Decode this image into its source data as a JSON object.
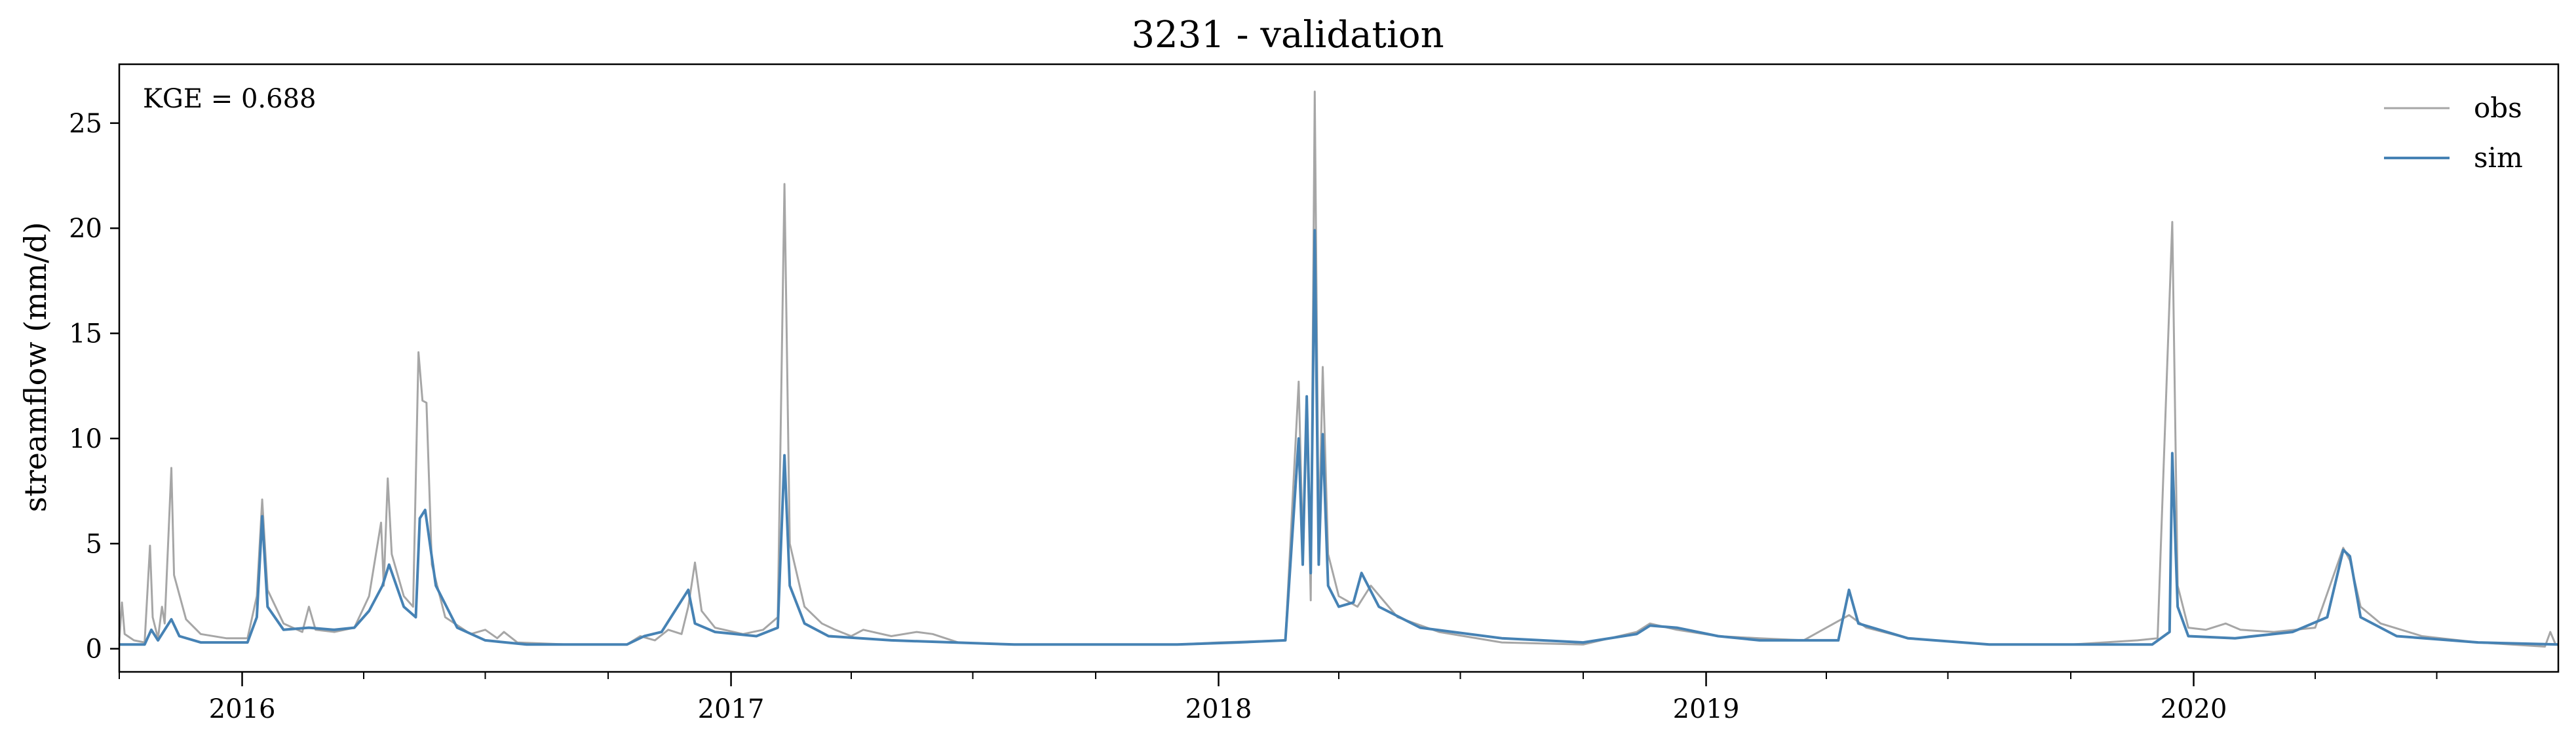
{
  "chart_data": {
    "type": "line",
    "title": "3231 - validation",
    "xlabel": "",
    "ylabel": "streamflow (mm/d)",
    "annotation": "KGE = 0.688",
    "x_range": [
      "2015-10-01",
      "2020-09-30"
    ],
    "x_tick_labels": [
      "2016",
      "2017",
      "2018",
      "2019",
      "2020"
    ],
    "x_ticks": [
      "2016-01-01",
      "2017-01-01",
      "2018-01-01",
      "2019-01-01",
      "2020-01-01"
    ],
    "ylim": [
      -1.1,
      27.8
    ],
    "y_ticks": [
      0,
      5,
      10,
      15,
      20,
      25
    ],
    "y_tick_labels": [
      "0",
      "5",
      "10",
      "15",
      "20",
      "25"
    ],
    "grid": false,
    "legend_position": "top-right",
    "series": [
      {
        "name": "obs",
        "color": "#a6a6a6",
        "points": [
          [
            "2015-10-01",
            0.4
          ],
          [
            "2015-10-03",
            2.2
          ],
          [
            "2015-10-05",
            0.7
          ],
          [
            "2015-10-12",
            0.4
          ],
          [
            "2015-10-20",
            0.3
          ],
          [
            "2015-10-24",
            4.9
          ],
          [
            "2015-10-26",
            1.5
          ],
          [
            "2015-10-30",
            0.5
          ],
          [
            "2015-11-02",
            2.0
          ],
          [
            "2015-11-04",
            1.2
          ],
          [
            "2015-11-09",
            8.6
          ],
          [
            "2015-11-11",
            3.5
          ],
          [
            "2015-11-20",
            1.4
          ],
          [
            "2015-12-01",
            0.7
          ],
          [
            "2015-12-20",
            0.5
          ],
          [
            "2016-01-05",
            0.5
          ],
          [
            "2016-01-12",
            2.5
          ],
          [
            "2016-01-16",
            7.1
          ],
          [
            "2016-01-20",
            2.8
          ],
          [
            "2016-02-01",
            1.2
          ],
          [
            "2016-02-15",
            0.8
          ],
          [
            "2016-02-20",
            2.0
          ],
          [
            "2016-02-25",
            0.9
          ],
          [
            "2016-03-10",
            0.8
          ],
          [
            "2016-03-25",
            1.0
          ],
          [
            "2016-04-05",
            2.5
          ],
          [
            "2016-04-14",
            6.0
          ],
          [
            "2016-04-16",
            3.0
          ],
          [
            "2016-04-19",
            8.1
          ],
          [
            "2016-04-22",
            4.5
          ],
          [
            "2016-05-01",
            2.5
          ],
          [
            "2016-05-08",
            2.0
          ],
          [
            "2016-05-12",
            14.1
          ],
          [
            "2016-05-15",
            11.8
          ],
          [
            "2016-05-18",
            11.7
          ],
          [
            "2016-05-22",
            4.0
          ],
          [
            "2016-06-01",
            1.5
          ],
          [
            "2016-06-20",
            0.7
          ],
          [
            "2016-07-01",
            0.9
          ],
          [
            "2016-07-10",
            0.5
          ],
          [
            "2016-07-15",
            0.8
          ],
          [
            "2016-07-25",
            0.3
          ],
          [
            "2016-09-01",
            0.2
          ],
          [
            "2016-10-15",
            0.2
          ],
          [
            "2016-10-25",
            0.6
          ],
          [
            "2016-11-05",
            0.4
          ],
          [
            "2016-11-15",
            0.9
          ],
          [
            "2016-11-25",
            0.7
          ],
          [
            "2016-11-30",
            2.0
          ],
          [
            "2016-12-05",
            4.1
          ],
          [
            "2016-12-10",
            1.8
          ],
          [
            "2016-12-20",
            1.0
          ],
          [
            "2017-01-10",
            0.7
          ],
          [
            "2017-01-25",
            0.9
          ],
          [
            "2017-02-05",
            1.5
          ],
          [
            "2017-02-10",
            22.1
          ],
          [
            "2017-02-14",
            5.0
          ],
          [
            "2017-02-25",
            2.0
          ],
          [
            "2017-03-10",
            1.2
          ],
          [
            "2017-03-20",
            0.9
          ],
          [
            "2017-04-01",
            0.6
          ],
          [
            "2017-04-10",
            0.9
          ],
          [
            "2017-05-01",
            0.6
          ],
          [
            "2017-05-20",
            0.8
          ],
          [
            "2017-06-01",
            0.7
          ],
          [
            "2017-06-20",
            0.3
          ],
          [
            "2017-08-01",
            0.2
          ],
          [
            "2017-12-01",
            0.2
          ],
          [
            "2018-01-01",
            0.3
          ],
          [
            "2018-02-20",
            0.4
          ],
          [
            "2018-03-02",
            12.7
          ],
          [
            "2018-03-05",
            5.0
          ],
          [
            "2018-03-08",
            11.0
          ],
          [
            "2018-03-11",
            2.3
          ],
          [
            "2018-03-14",
            26.5
          ],
          [
            "2018-03-17",
            5.0
          ],
          [
            "2018-03-20",
            13.4
          ],
          [
            "2018-03-24",
            4.5
          ],
          [
            "2018-04-01",
            2.5
          ],
          [
            "2018-04-15",
            2.0
          ],
          [
            "2018-04-25",
            3.0
          ],
          [
            "2018-05-15",
            1.5
          ],
          [
            "2018-06-15",
            0.8
          ],
          [
            "2018-08-01",
            0.3
          ],
          [
            "2018-10-01",
            0.2
          ],
          [
            "2018-11-10",
            0.8
          ],
          [
            "2018-11-20",
            1.2
          ],
          [
            "2018-12-10",
            0.9
          ],
          [
            "2019-01-10",
            0.6
          ],
          [
            "2019-02-10",
            0.5
          ],
          [
            "2019-03-15",
            0.4
          ],
          [
            "2019-04-18",
            1.6
          ],
          [
            "2019-05-01",
            1.0
          ],
          [
            "2019-06-01",
            0.5
          ],
          [
            "2019-08-01",
            0.2
          ],
          [
            "2019-10-01",
            0.2
          ],
          [
            "2019-11-20",
            0.4
          ],
          [
            "2019-12-05",
            0.5
          ],
          [
            "2019-12-16",
            20.3
          ],
          [
            "2019-12-20",
            3.0
          ],
          [
            "2019-12-28",
            1.0
          ],
          [
            "2020-01-10",
            0.9
          ],
          [
            "2020-01-25",
            1.2
          ],
          [
            "2020-02-05",
            0.9
          ],
          [
            "2020-03-01",
            0.8
          ],
          [
            "2020-04-01",
            1.0
          ],
          [
            "2020-04-22",
            4.8
          ],
          [
            "2020-04-27",
            4.2
          ],
          [
            "2020-05-05",
            2.0
          ],
          [
            "2020-05-20",
            1.2
          ],
          [
            "2020-06-20",
            0.6
          ],
          [
            "2020-08-01",
            0.3
          ],
          [
            "2020-09-20",
            0.1
          ],
          [
            "2020-09-24",
            0.8
          ],
          [
            "2020-09-28",
            0.2
          ]
        ]
      },
      {
        "name": "sim",
        "color": "#4682b4",
        "points": [
          [
            "2015-10-01",
            0.2
          ],
          [
            "2015-10-20",
            0.2
          ],
          [
            "2015-10-25",
            0.9
          ],
          [
            "2015-10-30",
            0.4
          ],
          [
            "2015-11-09",
            1.4
          ],
          [
            "2015-11-15",
            0.6
          ],
          [
            "2015-12-01",
            0.3
          ],
          [
            "2016-01-05",
            0.3
          ],
          [
            "2016-01-12",
            1.5
          ],
          [
            "2016-01-16",
            6.3
          ],
          [
            "2016-01-20",
            2.0
          ],
          [
            "2016-02-01",
            0.9
          ],
          [
            "2016-02-20",
            1.0
          ],
          [
            "2016-03-10",
            0.9
          ],
          [
            "2016-03-25",
            1.0
          ],
          [
            "2016-04-05",
            1.8
          ],
          [
            "2016-04-15",
            3.0
          ],
          [
            "2016-04-20",
            4.0
          ],
          [
            "2016-05-01",
            2.0
          ],
          [
            "2016-05-10",
            1.5
          ],
          [
            "2016-05-13",
            6.2
          ],
          [
            "2016-05-17",
            6.6
          ],
          [
            "2016-05-25",
            3.0
          ],
          [
            "2016-06-10",
            1.0
          ],
          [
            "2016-07-01",
            0.4
          ],
          [
            "2016-08-01",
            0.2
          ],
          [
            "2016-10-15",
            0.2
          ],
          [
            "2016-10-28",
            0.6
          ],
          [
            "2016-11-10",
            0.8
          ],
          [
            "2016-11-30",
            2.8
          ],
          [
            "2016-12-05",
            1.2
          ],
          [
            "2016-12-20",
            0.8
          ],
          [
            "2017-01-20",
            0.6
          ],
          [
            "2017-02-05",
            1.0
          ],
          [
            "2017-02-10",
            9.2
          ],
          [
            "2017-02-14",
            3.0
          ],
          [
            "2017-02-25",
            1.2
          ],
          [
            "2017-03-15",
            0.6
          ],
          [
            "2017-05-01",
            0.4
          ],
          [
            "2017-08-01",
            0.2
          ],
          [
            "2017-12-01",
            0.2
          ],
          [
            "2018-01-15",
            0.3
          ],
          [
            "2018-02-20",
            0.4
          ],
          [
            "2018-03-02",
            10.0
          ],
          [
            "2018-03-05",
            4.0
          ],
          [
            "2018-03-08",
            12.0
          ],
          [
            "2018-03-11",
            3.6
          ],
          [
            "2018-03-14",
            19.9
          ],
          [
            "2018-03-17",
            4.0
          ],
          [
            "2018-03-20",
            10.2
          ],
          [
            "2018-03-24",
            3.0
          ],
          [
            "2018-04-01",
            2.0
          ],
          [
            "2018-04-12",
            2.2
          ],
          [
            "2018-04-18",
            3.6
          ],
          [
            "2018-05-01",
            2.0
          ],
          [
            "2018-06-01",
            1.0
          ],
          [
            "2018-08-01",
            0.5
          ],
          [
            "2018-10-01",
            0.3
          ],
          [
            "2018-11-10",
            0.7
          ],
          [
            "2018-11-20",
            1.1
          ],
          [
            "2018-12-10",
            1.0
          ],
          [
            "2019-01-10",
            0.6
          ],
          [
            "2019-02-10",
            0.4
          ],
          [
            "2019-04-10",
            0.4
          ],
          [
            "2019-04-18",
            2.8
          ],
          [
            "2019-04-25",
            1.2
          ],
          [
            "2019-06-01",
            0.5
          ],
          [
            "2019-08-01",
            0.2
          ],
          [
            "2019-12-01",
            0.2
          ],
          [
            "2019-12-14",
            0.8
          ],
          [
            "2019-12-16",
            9.3
          ],
          [
            "2019-12-20",
            2.0
          ],
          [
            "2019-12-28",
            0.6
          ],
          [
            "2020-02-01",
            0.5
          ],
          [
            "2020-03-15",
            0.8
          ],
          [
            "2020-04-10",
            1.5
          ],
          [
            "2020-04-22",
            4.7
          ],
          [
            "2020-04-27",
            4.4
          ],
          [
            "2020-05-05",
            1.5
          ],
          [
            "2020-06-01",
            0.6
          ],
          [
            "2020-08-01",
            0.3
          ],
          [
            "2020-09-30",
            0.2
          ]
        ]
      }
    ]
  }
}
